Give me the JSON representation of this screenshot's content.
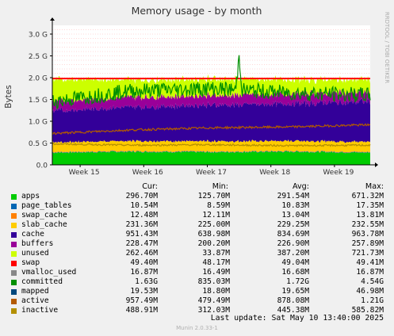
{
  "chart_data": {
    "type": "area",
    "title": "Memory usage - by month",
    "ylabel": "Bytes",
    "side_text": "RRDTOOL / TOBI OETIKER",
    "ylim": [
      0,
      3.2
    ],
    "yticks": [
      0,
      0.5,
      1.0,
      1.5,
      2.0,
      2.5,
      3.0
    ],
    "ytick_labels": [
      "0.0",
      "0.5 G",
      "1.0 G",
      "1.5 G",
      "2.0 G",
      "2.5 G",
      "3.0 G"
    ],
    "x_categories": [
      "Week 15",
      "Week 16",
      "Week 17",
      "Week 18",
      "Week 19"
    ],
    "stack_bands": [
      {
        "name": "apps",
        "values": [
          0.28,
          0.3,
          0.29,
          0.3,
          0.28
        ]
      },
      {
        "name": "page_tables",
        "values": [
          0.01,
          0.01,
          0.01,
          0.01,
          0.01
        ]
      },
      {
        "name": "swap_cache",
        "values": [
          0.01,
          0.01,
          0.01,
          0.01,
          0.01
        ]
      },
      {
        "name": "slab_cache",
        "values": [
          0.22,
          0.23,
          0.23,
          0.23,
          0.23
        ]
      },
      {
        "name": "cache",
        "values": [
          0.72,
          0.78,
          0.83,
          0.85,
          0.93
        ]
      },
      {
        "name": "buffers",
        "values": [
          0.22,
          0.23,
          0.22,
          0.23,
          0.22
        ]
      },
      {
        "name": "unused",
        "values": [
          0.51,
          0.4,
          0.38,
          0.33,
          0.28
        ]
      }
    ],
    "swap_line": 1.98,
    "committed_series": [
      1.45,
      1.7,
      1.75,
      1.65,
      1.6
    ],
    "active_series": [
      0.72,
      0.8,
      0.85,
      0.87,
      0.92
    ],
    "inactive_series": [
      0.48,
      0.45,
      0.46,
      0.44,
      0.45
    ],
    "colors": {
      "apps": "#00cc00",
      "page_tables": "#0066b3",
      "swap_cache": "#ff8000",
      "slab_cache": "#ffcc00",
      "cache": "#330099",
      "buffers": "#990099",
      "unused": "#ccff00",
      "swap": "#ff0000",
      "vmalloc_used": "#888888",
      "committed": "#008f00",
      "mapped": "#00487d",
      "active": "#b35a00",
      "inactive": "#b38f00"
    }
  },
  "legend": {
    "headers": {
      "cur": "Cur:",
      "min": "Min:",
      "avg": "Avg:",
      "max": "Max:"
    },
    "rows": [
      {
        "name": "apps",
        "cur": "296.70M",
        "min": "125.70M",
        "avg": "291.54M",
        "max": "671.32M",
        "color": "#00cc00"
      },
      {
        "name": "page_tables",
        "cur": "10.54M",
        "min": "8.59M",
        "avg": "10.83M",
        "max": "17.35M",
        "color": "#0066b3"
      },
      {
        "name": "swap_cache",
        "cur": "12.48M",
        "min": "12.11M",
        "avg": "13.04M",
        "max": "13.81M",
        "color": "#ff8000"
      },
      {
        "name": "slab_cache",
        "cur": "231.36M",
        "min": "225.00M",
        "avg": "229.25M",
        "max": "232.55M",
        "color": "#ffcc00"
      },
      {
        "name": "cache",
        "cur": "951.43M",
        "min": "638.98M",
        "avg": "834.69M",
        "max": "963.78M",
        "color": "#330099"
      },
      {
        "name": "buffers",
        "cur": "228.47M",
        "min": "200.20M",
        "avg": "226.90M",
        "max": "257.89M",
        "color": "#990099"
      },
      {
        "name": "unused",
        "cur": "262.46M",
        "min": "33.87M",
        "avg": "387.20M",
        "max": "721.73M",
        "color": "#ccff00"
      },
      {
        "name": "swap",
        "cur": "49.40M",
        "min": "48.17M",
        "avg": "49.04M",
        "max": "49.41M",
        "color": "#ff0000"
      },
      {
        "name": "vmalloc_used",
        "cur": "16.87M",
        "min": "16.49M",
        "avg": "16.68M",
        "max": "16.87M",
        "color": "#888888"
      },
      {
        "name": "committed",
        "cur": "1.63G",
        "min": "835.03M",
        "avg": "1.72G",
        "max": "4.54G",
        "color": "#008f00"
      },
      {
        "name": "mapped",
        "cur": "19.53M",
        "min": "18.80M",
        "avg": "19.65M",
        "max": "46.98M",
        "color": "#00487d"
      },
      {
        "name": "active",
        "cur": "957.49M",
        "min": "479.49M",
        "avg": "878.08M",
        "max": "1.21G",
        "color": "#b35a00"
      },
      {
        "name": "inactive",
        "cur": "488.91M",
        "min": "312.03M",
        "avg": "445.38M",
        "max": "585.82M",
        "color": "#b38f00"
      }
    ]
  },
  "footer": {
    "last_update": "Last update:  Sat May 10 13:40:00 2025",
    "version": "Munin 2.0.33-1"
  }
}
